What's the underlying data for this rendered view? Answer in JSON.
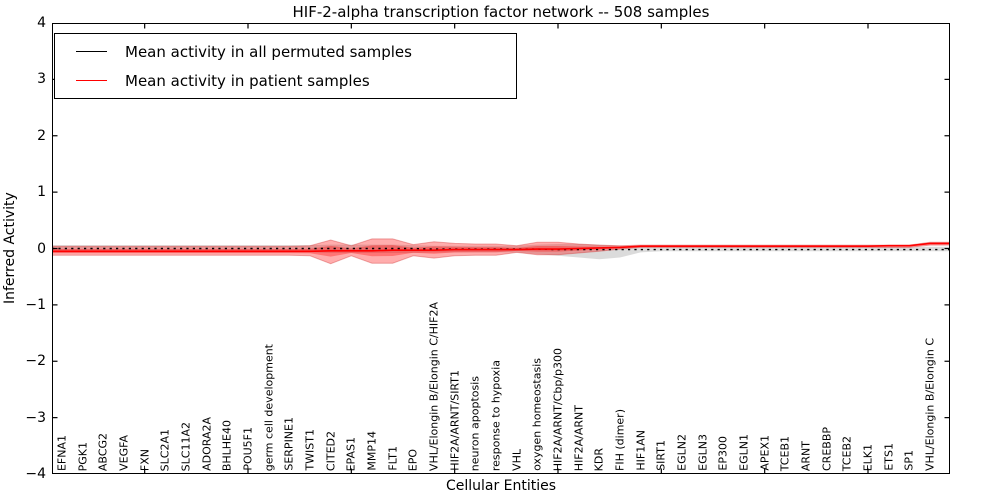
{
  "title": "HIF-2-alpha transcription factor network -- 508 samples",
  "axes": {
    "xlabel": "Cellular Entities",
    "ylabel": "Inferred Activity",
    "yticks": [
      "4",
      "3",
      "2",
      "1",
      "0",
      "−1",
      "−2",
      "−3",
      "−4"
    ],
    "xtick_category_indices": [
      4,
      9,
      14,
      19,
      24,
      29,
      34,
      39
    ]
  },
  "legend": {
    "entries": [
      {
        "label": "Mean activity in all permuted samples",
        "color": "#000000"
      },
      {
        "label": "Mean activity in patient samples",
        "color": "#ff0000"
      }
    ]
  },
  "chart_data": {
    "type": "line",
    "title": "HIF-2-alpha transcription factor network -- 508 samples",
    "xlabel": "Cellular Entities",
    "ylabel": "Inferred Activity",
    "ylim": [
      -4,
      4
    ],
    "grid": false,
    "legend_position": "upper left",
    "categories": [
      "EFNA1",
      "PGK1",
      "ABCG2",
      "VEGFA",
      "FXN",
      "SLC2A1",
      "SLC11A2",
      "ADORA2A",
      "BHLHE40",
      "POU5F1",
      "germ cell development",
      "SERPINE1",
      "TWIST1",
      "CITED2",
      "EPAS1",
      "MMP14",
      "FLT1",
      "EPO",
      "VHL/Elongin B/Elongin C/HIF2A",
      "HIF2A/ARNT/SIRT1",
      "neuron apoptosis",
      "response to hypoxia",
      "VHL",
      "oxygen homeostasis",
      "HIF2A/ARNT/Cbp/p300",
      "HIF2A/ARNT",
      "KDR",
      "FIH (dimer)",
      "HIF1AN",
      "SIRT1",
      "EGLN2",
      "EGLN3",
      "EP300",
      "EGLN1",
      "APEX1",
      "TCEB1",
      "ARNT",
      "CREBBP",
      "TCEB2",
      "ELK1",
      "ETS1",
      "SP1",
      "VHL/Elongin B/Elongin C"
    ],
    "series": [
      {
        "name": "Mean activity in all permuted samples",
        "color": "#000000",
        "style": "dotted",
        "band_color": "#000000",
        "band_opacity": 0.14,
        "values": [
          0,
          0,
          0,
          0,
          0,
          0,
          0,
          0,
          0,
          0,
          0,
          0,
          0,
          0,
          0,
          0,
          0,
          0,
          -0.01,
          -0.01,
          -0.01,
          -0.01,
          -0.01,
          -0.01,
          -0.02,
          -0.02,
          -0.02,
          -0.02,
          -0.02,
          -0.02,
          -0.02,
          -0.02,
          -0.02,
          -0.02,
          -0.02,
          -0.02,
          -0.02,
          -0.02,
          -0.02,
          -0.02,
          -0.02,
          -0.02,
          -0.02
        ],
        "band_upper": [
          0.06,
          0.06,
          0.06,
          0.06,
          0.06,
          0.06,
          0.06,
          0.06,
          0.06,
          0.06,
          0.06,
          0.06,
          0.06,
          0.07,
          0.07,
          0.07,
          0.07,
          0.06,
          0.05,
          0.05,
          0.05,
          0.05,
          0.05,
          0.07,
          0.08,
          0.08,
          0.07,
          0.05,
          0.03,
          0.03,
          0.03,
          0.03,
          0.03,
          0.03,
          0.03,
          0.03,
          0.03,
          0.03,
          0.03,
          0.03,
          0.03,
          0.03,
          0.03
        ],
        "band_lower": [
          -0.07,
          -0.07,
          -0.07,
          -0.07,
          -0.07,
          -0.07,
          -0.07,
          -0.07,
          -0.07,
          -0.07,
          -0.07,
          -0.07,
          -0.07,
          -0.08,
          -0.08,
          -0.08,
          -0.08,
          -0.08,
          -0.07,
          -0.07,
          -0.07,
          -0.07,
          -0.07,
          -0.1,
          -0.13,
          -0.16,
          -0.19,
          -0.16,
          -0.07,
          -0.05,
          -0.05,
          -0.05,
          -0.05,
          -0.05,
          -0.05,
          -0.05,
          -0.05,
          -0.05,
          -0.05,
          -0.05,
          -0.05,
          -0.05,
          -0.05
        ]
      },
      {
        "name": "Mean activity in patient samples",
        "color": "#ff0000",
        "style": "solid",
        "band_color": "#ff0000",
        "band_opacity": 0.32,
        "values": [
          -0.05,
          -0.05,
          -0.05,
          -0.05,
          -0.05,
          -0.05,
          -0.05,
          -0.05,
          -0.05,
          -0.05,
          -0.05,
          -0.05,
          -0.05,
          -0.04,
          -0.04,
          -0.04,
          -0.03,
          -0.03,
          -0.03,
          -0.02,
          -0.02,
          -0.02,
          -0.02,
          -0.01,
          -0.01,
          0.0,
          0.01,
          0.02,
          0.04,
          0.04,
          0.04,
          0.04,
          0.04,
          0.04,
          0.04,
          0.04,
          0.04,
          0.04,
          0.04,
          0.04,
          0.05,
          0.05,
          0.09
        ],
        "band_upper": [
          0.04,
          0.04,
          0.04,
          0.04,
          0.04,
          0.04,
          0.04,
          0.04,
          0.04,
          0.04,
          0.04,
          0.04,
          0.05,
          0.15,
          0.05,
          0.17,
          0.17,
          0.07,
          0.12,
          0.09,
          0.08,
          0.08,
          0.05,
          0.11,
          0.11,
          0.08,
          0.06,
          0.05,
          0.06,
          0.06,
          0.06,
          0.06,
          0.06,
          0.06,
          0.06,
          0.06,
          0.06,
          0.06,
          0.06,
          0.06,
          0.06,
          0.06,
          0.11
        ],
        "band_lower": [
          -0.12,
          -0.12,
          -0.12,
          -0.12,
          -0.12,
          -0.12,
          -0.12,
          -0.12,
          -0.12,
          -0.12,
          -0.12,
          -0.12,
          -0.13,
          -0.27,
          -0.13,
          -0.26,
          -0.26,
          -0.13,
          -0.17,
          -0.13,
          -0.12,
          -0.12,
          -0.07,
          -0.11,
          -0.11,
          -0.08,
          -0.05,
          -0.01,
          0.02,
          0.02,
          0.02,
          0.02,
          0.02,
          0.02,
          0.02,
          0.02,
          0.02,
          0.02,
          0.02,
          0.02,
          0.02,
          0.02,
          0.06
        ]
      }
    ]
  }
}
